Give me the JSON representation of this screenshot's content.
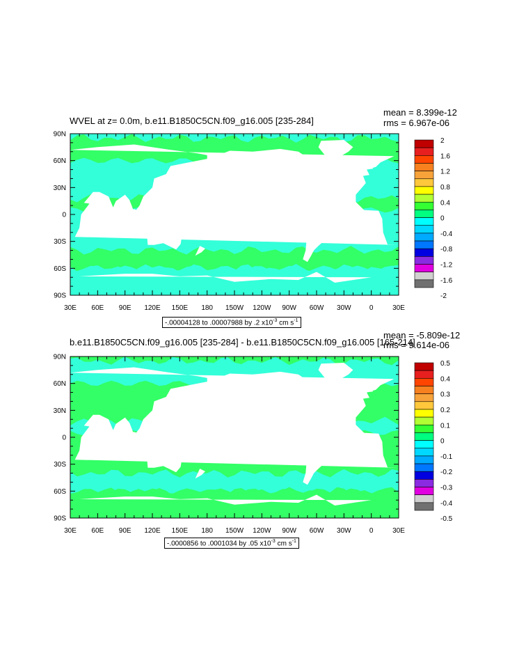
{
  "panels": [
    {
      "title": "WVEL at z=   0.0m, b.e11.B1850C5CN.f09_g16.005 [235-284]",
      "mean": "mean = 8.399e-12",
      "rms": "rms = 6.967e-06",
      "range_text": "-.00004128 to .00007988 by .2 x10",
      "range_exp": "-3",
      "range_unit": " cm s",
      "range_unit_exp": "-1",
      "colorbar_labels": [
        "2",
        "1.6",
        "1.2",
        "0.8",
        "0.4",
        "0",
        "-0.4",
        "-0.8",
        "-1.2",
        "-1.6",
        "-2"
      ]
    },
    {
      "title": "b.e11.B1850C5CN.f09_g16.005 [235-284] - b.e11.B1850C5CN.f09_g16.005 [165-214]",
      "mean": "mean = -5.809e-12",
      "rms": "rms = 9.614e-06",
      "range_text": "-.0000856 to .0001034 by .05 x10",
      "range_exp": "-3",
      "range_unit": " cm s",
      "range_unit_exp": "-1",
      "colorbar_labels": [
        "0.5",
        "0.4",
        "0.3",
        "0.2",
        "0.1",
        "0",
        "-0.1",
        "-0.2",
        "-0.3",
        "-0.4",
        "-0.5"
      ]
    }
  ],
  "map": {
    "lat_labels": [
      "90N",
      "60N",
      "30N",
      "0",
      "30S",
      "60S",
      "90S"
    ],
    "lon_labels": [
      "30E",
      "60E",
      "90E",
      "120E",
      "150E",
      "180",
      "150W",
      "120W",
      "90W",
      "60W",
      "30W",
      "0",
      "30E"
    ]
  },
  "colorbar": {
    "colors": [
      "#c00000",
      "#e81f1f",
      "#ff4500",
      "#f7801f",
      "#f7a33a",
      "#ffc83c",
      "#ffff00",
      "#b2ff33",
      "#33ff33",
      "#00ff80",
      "#00ffff",
      "#00d8ff",
      "#00aaff",
      "#0077ff",
      "#0000e0",
      "#8a2be2",
      "#e000e0",
      "#d0d0d0",
      "#707070"
    ]
  },
  "field_colors": {
    "ocean_a": "#33ff66",
    "ocean_b": "#33ffd9",
    "land": "#ffffff"
  }
}
